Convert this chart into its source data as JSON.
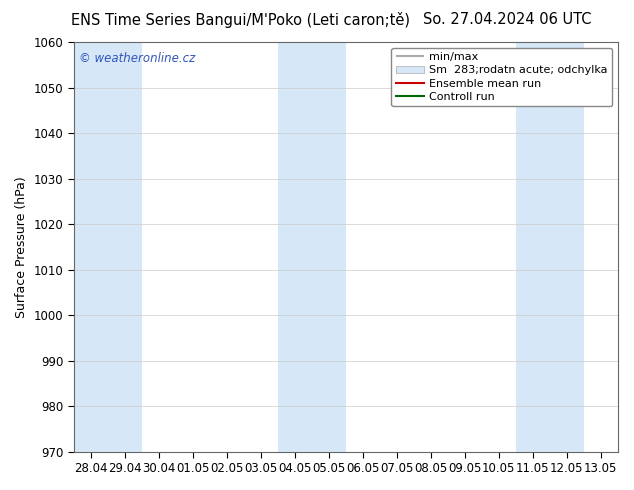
{
  "title_left": "ENS Time Series Bangui/M'Poko (Leti caron;tě)",
  "title_right": "So. 27.04.2024 06 UTC",
  "ylabel": "Surface Pressure (hPa)",
  "ylim": [
    970,
    1060
  ],
  "yticks": [
    970,
    980,
    990,
    1000,
    1010,
    1020,
    1030,
    1040,
    1050,
    1060
  ],
  "xtick_labels": [
    "28.04",
    "29.04",
    "30.04",
    "01.05",
    "02.05",
    "03.05",
    "04.05",
    "05.05",
    "06.05",
    "07.05",
    "08.05",
    "09.05",
    "10.05",
    "11.05",
    "12.05",
    "13.05"
  ],
  "shaded_indices": [
    0,
    1,
    6,
    7,
    13,
    14
  ],
  "fig_bg_color": "#ffffff",
  "plot_bg_color": "#ffffff",
  "band_color": "#d6e8f8",
  "legend_items": [
    "min/max",
    "Sm  283;rodatn acute; odchylka",
    "Ensemble mean run",
    "Controll run"
  ],
  "legend_line_color": "#aaaaaa",
  "legend_band_color": "#d6e8f8",
  "legend_ensemble_color": "#cc0000",
  "legend_control_color": "#006600",
  "watermark": "© weatheronline.cz",
  "watermark_color": "#3355bb",
  "title_fontsize": 10.5,
  "axis_label_fontsize": 9,
  "tick_fontsize": 8.5,
  "legend_fontsize": 8
}
